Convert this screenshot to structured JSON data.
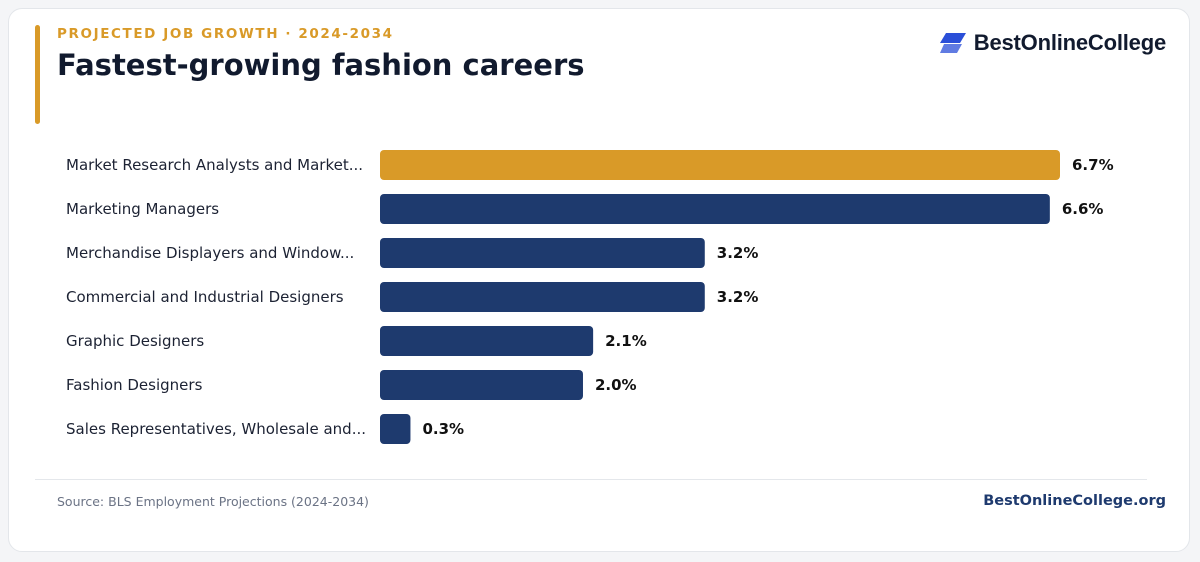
{
  "header": {
    "eyebrow": "PROJECTED JOB GROWTH · 2024-2034",
    "title": "Fastest-growing fashion careers"
  },
  "brand": {
    "logo_text": "BestOnlineCollege",
    "logo_icon": "brand-mark-icon",
    "site": "BestOnlineCollege.org"
  },
  "footer": {
    "source": "Source: BLS Employment Projections (2024-2034)"
  },
  "colors": {
    "accent": "#d99a28",
    "primary_bar": "#1e3a6e",
    "logo_blue": "#2b4fd8"
  },
  "chart_data": {
    "type": "bar",
    "orientation": "horizontal",
    "categories": [
      "Market Research Analysts and Market...",
      "Marketing Managers",
      "Merchandise Displayers and Window...",
      "Commercial and Industrial Designers",
      "Graphic Designers",
      "Fashion Designers",
      "Sales Representatives, Wholesale and..."
    ],
    "values": [
      6.7,
      6.6,
      3.2,
      3.2,
      2.1,
      2.0,
      0.3
    ],
    "value_labels": [
      "6.7%",
      "6.6%",
      "3.2%",
      "3.2%",
      "2.1%",
      "2.0%",
      "0.3%"
    ],
    "highlight_index": 0,
    "xlim": [
      0,
      6.7
    ],
    "grid": false,
    "legend": false
  }
}
